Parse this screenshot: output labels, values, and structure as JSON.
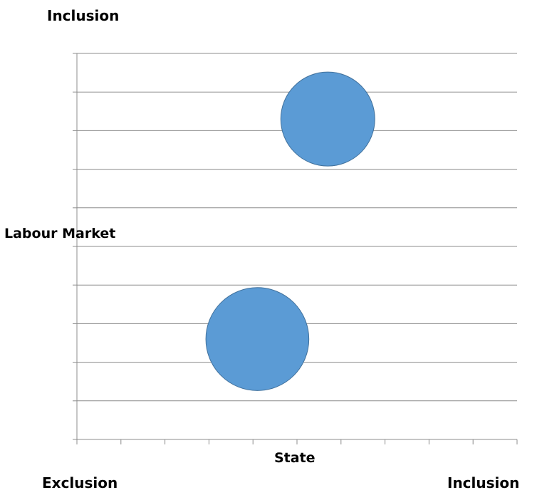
{
  "chart_data": {
    "type": "bubble",
    "title": "",
    "xlabel": "State",
    "ylabel": "Labour Market",
    "xlim": [
      0,
      10
    ],
    "ylim": [
      0,
      10
    ],
    "x_tick_count": 10,
    "y_tick_count": 10,
    "grid": {
      "horizontal": true,
      "vertical": false
    },
    "legend": "none",
    "corner_labels": {
      "y_top": "Inclusion",
      "x_left": "Exclusion",
      "x_right": "Inclusion"
    },
    "series": [
      {
        "color": "#5B9BD5",
        "points": [
          {
            "x": 5.7,
            "y": 8.3,
            "size": 1.0
          },
          {
            "x": 4.1,
            "y": 2.6,
            "size": 1.2
          }
        ]
      }
    ]
  }
}
